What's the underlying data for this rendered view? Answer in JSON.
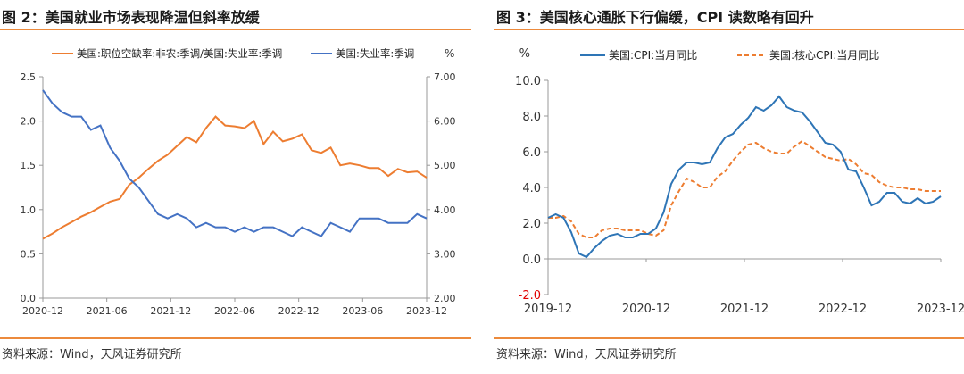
{
  "charts": [
    {
      "title": "图 2：美国就业市场表现降温但斜率放缓",
      "source": "资料来源：Wind，天风证券研究所",
      "unit_right": "%",
      "chart_data": {
        "type": "line",
        "x_ticks": [
          "2020-12",
          "2021-06",
          "2021-12",
          "2022-06",
          "2022-12",
          "2023-06",
          "2023-12"
        ],
        "y_left": {
          "min": 0.0,
          "max": 2.5,
          "ticks": [
            "0.0",
            "0.5",
            "1.0",
            "1.5",
            "2.0",
            "2.5"
          ]
        },
        "y_right": {
          "min": 2.0,
          "max": 7.0,
          "ticks": [
            "2.00",
            "3.00",
            "4.00",
            "5.00",
            "6.00",
            "7.00"
          ]
        },
        "grid": false,
        "legend_position": "top",
        "series": [
          {
            "name": "美国:职位空缺率:非农:季调/美国:失业率:季调",
            "axis": "left",
            "color": "#ed7d31",
            "values": [
              0.67,
              0.73,
              0.8,
              0.86,
              0.92,
              0.97,
              1.03,
              1.09,
              1.12,
              1.28,
              1.36,
              1.46,
              1.55,
              1.62,
              1.72,
              1.82,
              1.76,
              1.92,
              2.05,
              1.95,
              1.94,
              1.92,
              2.0,
              1.74,
              1.88,
              1.77,
              1.8,
              1.85,
              1.67,
              1.64,
              1.7,
              1.5,
              1.52,
              1.5,
              1.47,
              1.47,
              1.38,
              1.46,
              1.42,
              1.43,
              1.36
            ]
          },
          {
            "name": "美国:失业率:季调",
            "axis": "right",
            "color": "#4472c4",
            "values": [
              6.7,
              6.4,
              6.2,
              6.1,
              6.1,
              5.8,
              5.9,
              5.4,
              5.1,
              4.7,
              4.5,
              4.2,
              3.9,
              3.8,
              3.9,
              3.8,
              3.6,
              3.7,
              3.6,
              3.6,
              3.5,
              3.6,
              3.5,
              3.6,
              3.6,
              3.5,
              3.4,
              3.6,
              3.5,
              3.4,
              3.7,
              3.6,
              3.5,
              3.8,
              3.8,
              3.8,
              3.7,
              3.7,
              3.7,
              3.9,
              3.8
            ]
          }
        ]
      }
    },
    {
      "title": "图 3：美国核心通胀下行偏缓，CPI 读数略有回升",
      "source": "资料来源：Wind，天风证券研究所",
      "unit_left": "%",
      "chart_data": {
        "type": "line",
        "x_ticks": [
          "2019-12",
          "2020-12",
          "2021-12",
          "2022-12",
          "2023-12"
        ],
        "y": {
          "min": -2.0,
          "max": 10.0,
          "ticks": [
            "-2.0",
            "0.0",
            "2.0",
            "4.0",
            "6.0",
            "8.0",
            "10.0"
          ]
        },
        "grid": false,
        "legend_position": "top",
        "series": [
          {
            "name": "美国:CPI:当月同比",
            "color": "#2e75b6",
            "dashed": false,
            "values": [
              2.3,
              2.5,
              2.3,
              1.5,
              0.3,
              0.1,
              0.6,
              1.0,
              1.3,
              1.4,
              1.2,
              1.2,
              1.4,
              1.4,
              1.7,
              2.6,
              4.2,
              5.0,
              5.4,
              5.4,
              5.3,
              5.4,
              6.2,
              6.8,
              7.0,
              7.5,
              7.9,
              8.5,
              8.3,
              8.6,
              9.1,
              8.5,
              8.3,
              8.2,
              7.7,
              7.1,
              6.5,
              6.4,
              6.0,
              5.0,
              4.9,
              4.0,
              3.0,
              3.2,
              3.7,
              3.7,
              3.2,
              3.1,
              3.4,
              3.1,
              3.2,
              3.5
            ]
          },
          {
            "name": "美国:核心CPI:当月同比",
            "color": "#ed7d31",
            "dashed": true,
            "values": [
              2.3,
              2.3,
              2.4,
              2.1,
              1.4,
              1.2,
              1.2,
              1.6,
              1.7,
              1.7,
              1.6,
              1.6,
              1.6,
              1.4,
              1.3,
              1.6,
              3.0,
              3.8,
              4.5,
              4.3,
              4.0,
              4.0,
              4.6,
              4.9,
              5.5,
              6.0,
              6.4,
              6.5,
              6.2,
              6.0,
              5.9,
              5.9,
              6.3,
              6.6,
              6.3,
              6.0,
              5.7,
              5.6,
              5.5,
              5.6,
              5.3,
              4.8,
              4.7,
              4.3,
              4.1,
              4.0,
              4.0,
              3.9,
              3.9,
              3.8,
              3.8,
              3.8
            ]
          }
        ]
      }
    }
  ]
}
